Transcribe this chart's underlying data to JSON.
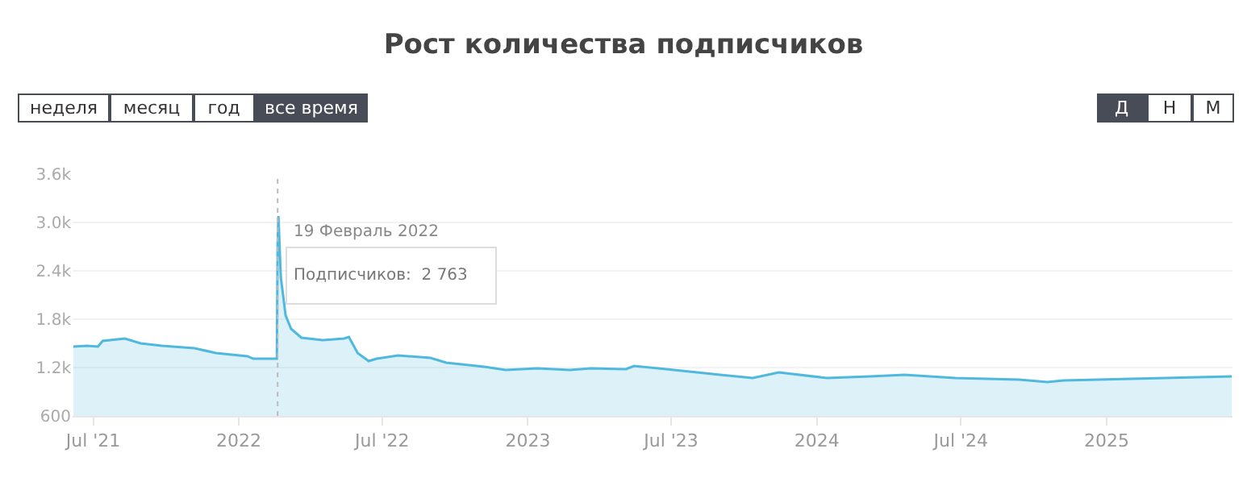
{
  "chart_data": {
    "type": "area",
    "title": "Рост количества подписчиков",
    "x": [
      "2021-06-06",
      "2021-06-23",
      "2021-07-07",
      "2021-07-13",
      "2021-08-10",
      "2021-08-30",
      "2021-09-26",
      "2021-11-06",
      "2021-12-03",
      "2022-01-12",
      "2022-01-19",
      "2022-02-18",
      "2022-02-19",
      "2022-02-20",
      "2022-02-23",
      "2022-03-01",
      "2022-03-08",
      "2022-03-21",
      "2022-04-17",
      "2022-05-14",
      "2022-05-20",
      "2022-05-31",
      "2022-06-14",
      "2022-06-24",
      "2022-07-21",
      "2022-08-31",
      "2022-09-20",
      "2022-11-07",
      "2022-12-04",
      "2023-01-13",
      "2023-02-23",
      "2023-03-22",
      "2023-05-05",
      "2023-05-15",
      "2023-06-25",
      "2023-09-01",
      "2023-10-12",
      "2023-11-14",
      "2024-01-14",
      "2024-03-08",
      "2024-04-21",
      "2024-06-24",
      "2024-08-04",
      "2024-09-13",
      "2024-10-18",
      "2024-11-08",
      "2025-06-08"
    ],
    "series": [
      {
        "color": "#4fb8df",
        "values": [
          1460,
          1470,
          1460,
          1530,
          1560,
          1500,
          1470,
          1440,
          1380,
          1340,
          1310,
          1310,
          2763,
          3080,
          2320,
          1850,
          1680,
          1570,
          1540,
          1560,
          1580,
          1380,
          1280,
          1310,
          1350,
          1320,
          1260,
          1210,
          1170,
          1190,
          1170,
          1190,
          1180,
          1220,
          1180,
          1110,
          1070,
          1140,
          1070,
          1090,
          1110,
          1070,
          1060,
          1050,
          1020,
          1040,
          1090
        ]
      }
    ],
    "xlim": [
      "2021-06-05",
      "2025-06-09"
    ],
    "xticks": [
      {
        "value": "2021-07-01",
        "label": "Jul '21"
      },
      {
        "value": "2022-01-01",
        "label": "2022"
      },
      {
        "value": "2022-07-01",
        "label": "Jul '22"
      },
      {
        "value": "2023-01-01",
        "label": "2023"
      },
      {
        "value": "2023-07-01",
        "label": "Jul '23"
      },
      {
        "value": "2024-01-01",
        "label": "2024"
      },
      {
        "value": "2024-07-01",
        "label": "Jul '24"
      },
      {
        "value": "2025-01-01",
        "label": "2025"
      }
    ],
    "ylim": [
      600,
      3600
    ],
    "yticks": [
      600,
      {
        "value": 1200,
        "label": "1.2k"
      },
      {
        "value": 1800,
        "label": "1.8k"
      },
      {
        "value": 2400,
        "label": "2.4k"
      },
      {
        "value": 3000,
        "label": "3.0k"
      },
      {
        "value": 3600,
        "label": "3.6k"
      }
    ],
    "grid": "y",
    "marker": "none",
    "line_style": "solid",
    "ref_lines": [
      {
        "axis": "x",
        "value": "2022-02-19",
        "color": "#bbbbbb",
        "line_style": "dotted"
      }
    ],
    "annotations": [
      "19 Февраль 2022",
      "Подписчиков:  2 763",
      "неделя",
      "месяц",
      "год",
      "все время",
      "Д",
      "Н",
      "М"
    ]
  }
}
